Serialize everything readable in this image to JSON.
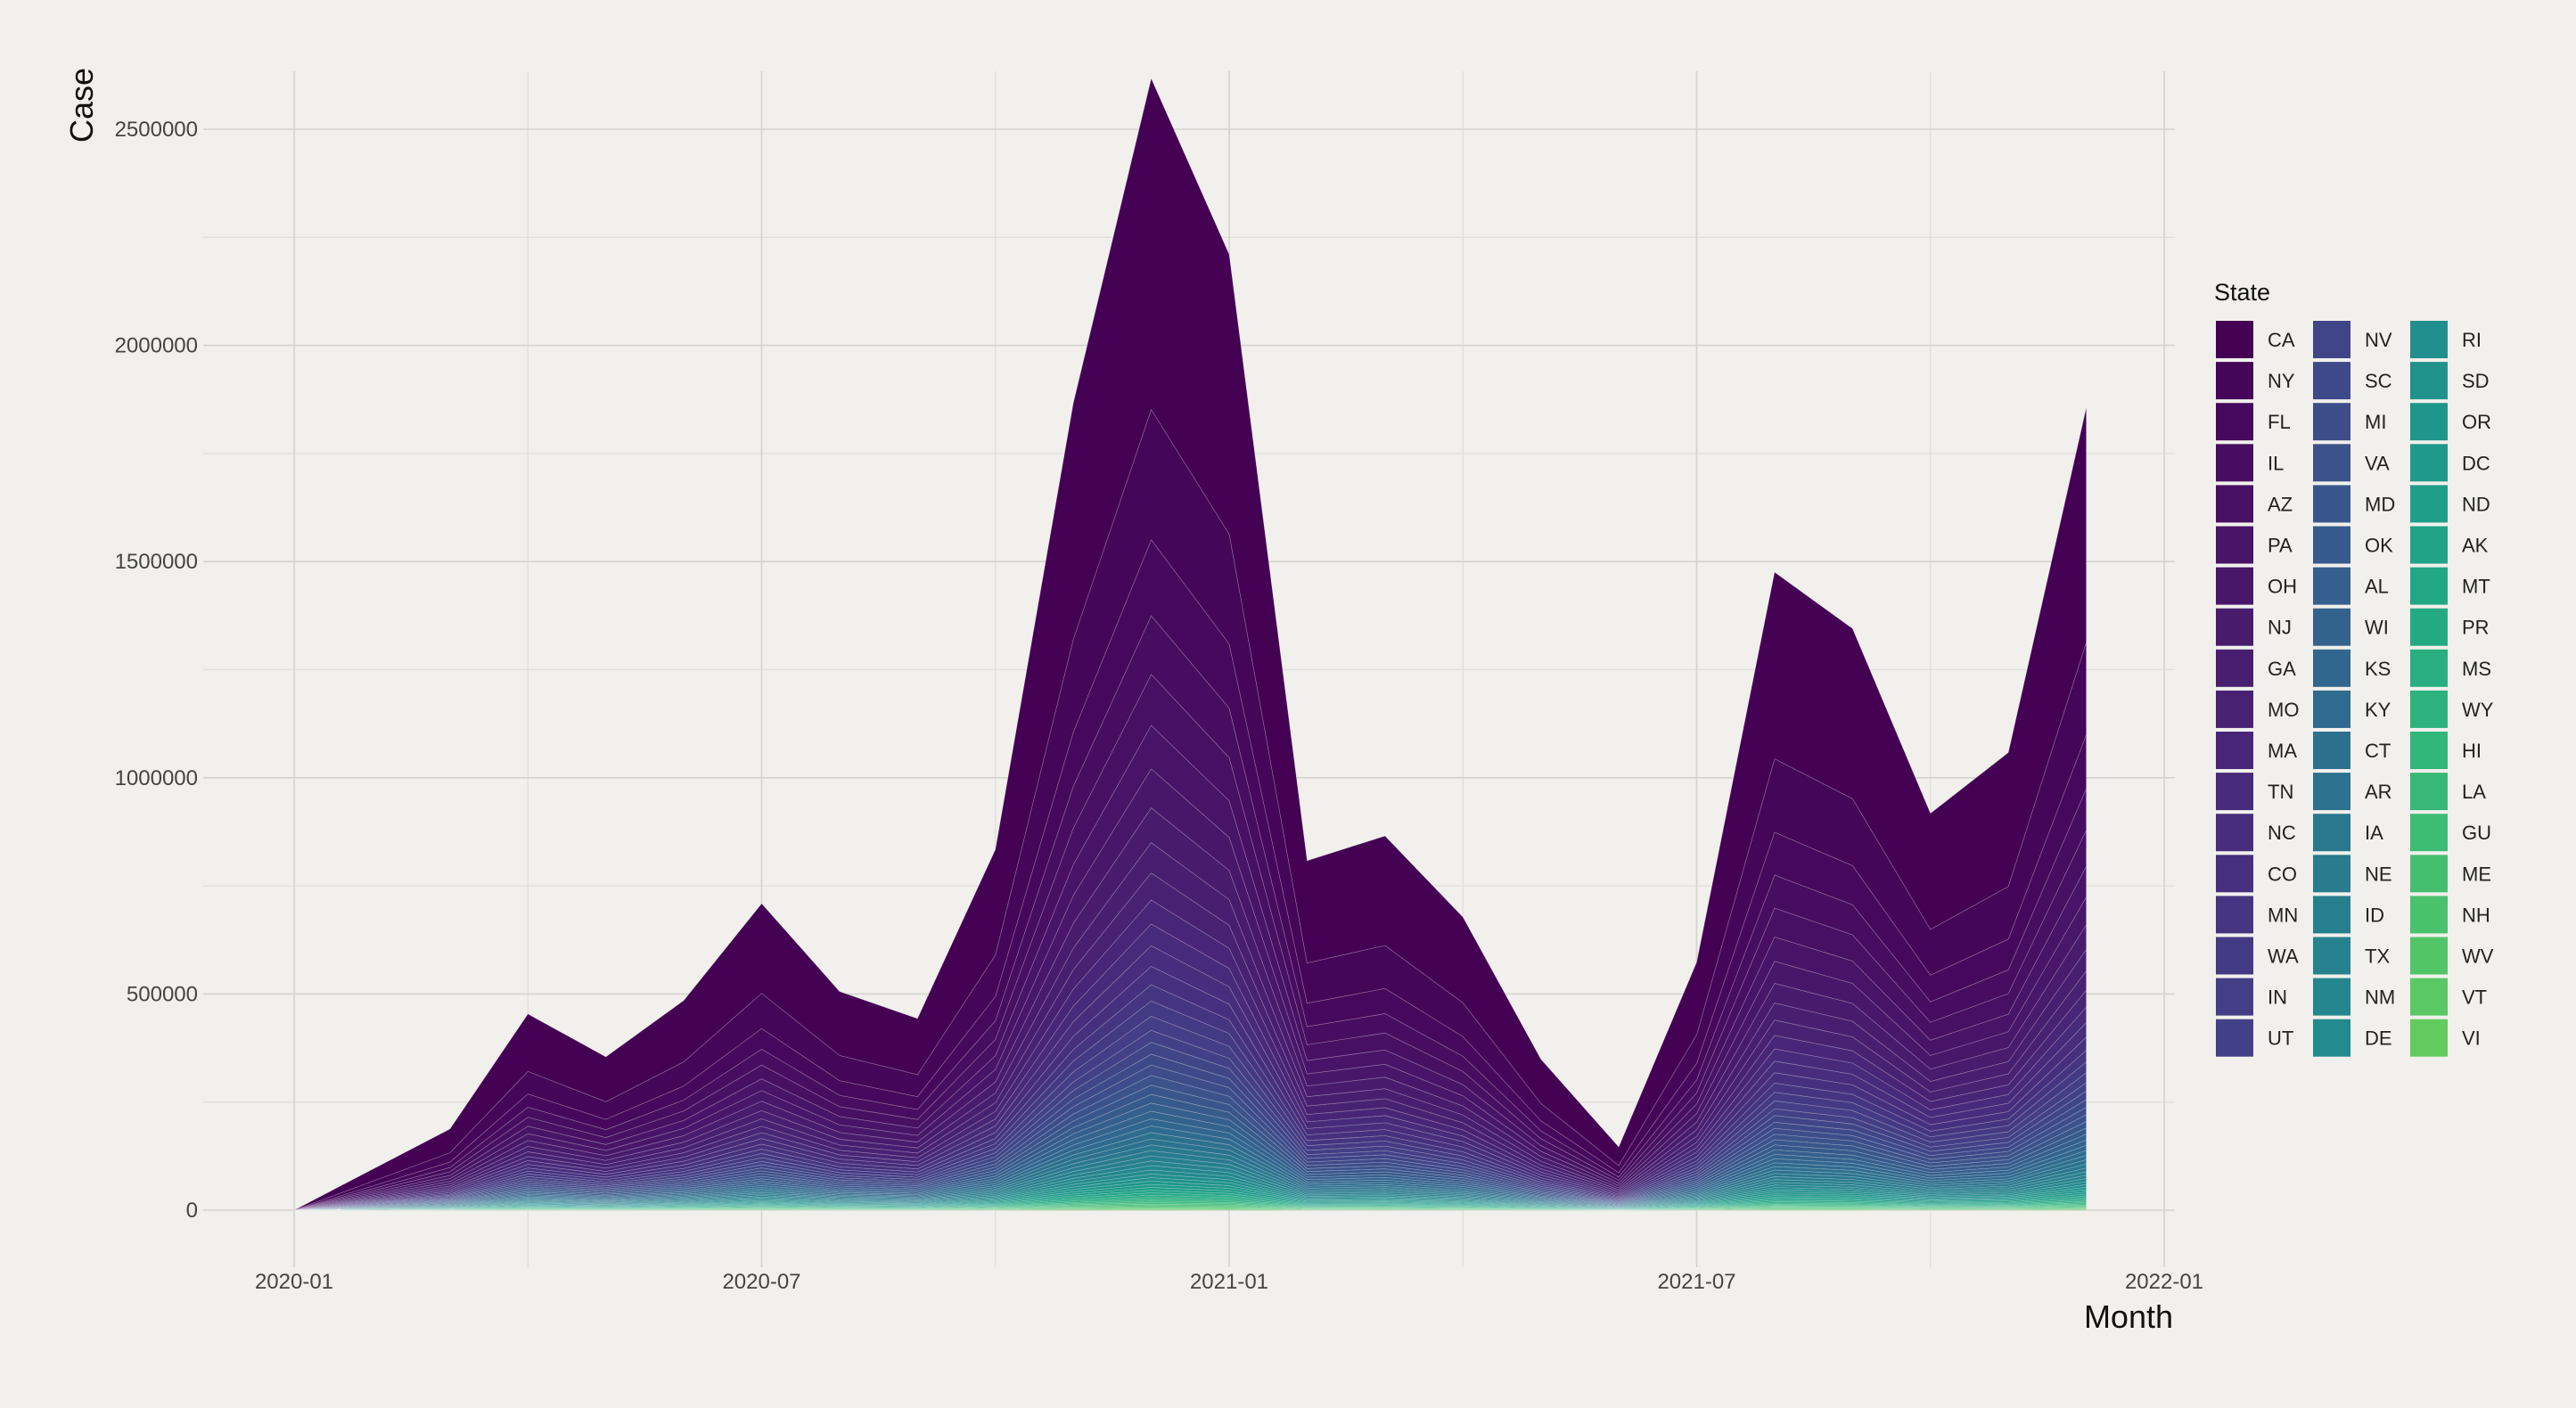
{
  "chart_data": {
    "type": "area",
    "stacked": true,
    "xlabel": "Month",
    "ylabel": "Case",
    "ylim": [
      -100000,
      2650000
    ],
    "y_ticks": [
      0,
      500000,
      1000000,
      1500000,
      2000000,
      2500000
    ],
    "y_tick_labels": [
      "0",
      "500000",
      "1000000",
      "1500000",
      "2000000",
      "2500000"
    ],
    "x_tick_labels": [
      "2020-01",
      "2020-07",
      "2021-01",
      "2021-07",
      "2022-01"
    ],
    "x": [
      "2020-01",
      "2020-03",
      "2020-04",
      "2020-05",
      "2020-06",
      "2020-07",
      "2020-08",
      "2020-09",
      "2020-10",
      "2020-11",
      "2020-12",
      "2021-01",
      "2021-02",
      "2021-03",
      "2021-04",
      "2021-05",
      "2021-06",
      "2021-07",
      "2021-08",
      "2021-09",
      "2021-10",
      "2021-11",
      "2021-12"
    ],
    "total": [
      0,
      180000,
      435000,
      340000,
      465000,
      680000,
      485000,
      425000,
      800000,
      1790000,
      2510000,
      2120000,
      775000,
      830000,
      650000,
      335000,
      140000,
      550000,
      1415000,
      1290000,
      880000,
      1015000,
      1780000
    ],
    "grid": true,
    "legend_title": "State",
    "legend_position": "right",
    "colormap": "viridis",
    "states": [
      "CA",
      "NY",
      "FL",
      "IL",
      "AZ",
      "PA",
      "OH",
      "NJ",
      "GA",
      "MO",
      "MA",
      "TN",
      "NC",
      "CO",
      "MN",
      "WA",
      "IN",
      "UT",
      "NV",
      "SC",
      "MI",
      "VA",
      "MD",
      "OK",
      "AL",
      "WI",
      "KS",
      "KY",
      "CT",
      "AR",
      "IA",
      "NE",
      "ID",
      "TX",
      "NM",
      "DE",
      "RI",
      "SD",
      "OR",
      "DC",
      "ND",
      "AK",
      "MT",
      "PR",
      "MS",
      "WY",
      "HI",
      "LA",
      "GU",
      "ME",
      "NH",
      "WV",
      "VT",
      "VI"
    ],
    "colors": [
      "#440154",
      "#450558",
      "#46085c",
      "#470d60",
      "#471063",
      "#481467",
      "#481769",
      "#481b6d",
      "#481f70",
      "#482173",
      "#482576",
      "#472a7a",
      "#472d7b",
      "#46307e",
      "#453581",
      "#443983",
      "#433e85",
      "#424086",
      "#404588",
      "#3e4989",
      "#3d4d8a",
      "#3b528b",
      "#39568c",
      "#375a8c",
      "#355f8d",
      "#33638d",
      "#31668e",
      "#2f6b8e",
      "#2d708e",
      "#2c728e",
      "#2a778e",
      "#297b8e",
      "#277f8e",
      "#26828e",
      "#24868e",
      "#238a8d",
      "#218f8d",
      "#20928c",
      "#1f968b",
      "#1f9a8a",
      "#1f9e89",
      "#20a386",
      "#22a785",
      "#24aa83",
      "#28ae80",
      "#2db27d",
      "#32b67a",
      "#37b878",
      "#3dbc74",
      "#44bf70",
      "#4ac16d",
      "#52c569",
      "#5ac864",
      "#62cb5f"
    ],
    "shares": [
      0.305,
      0.12,
      0.07,
      0.054,
      0.047,
      0.04,
      0.036,
      0.032,
      0.028,
      0.025,
      0.022,
      0.02,
      0.019,
      0.017,
      0.015,
      0.014,
      0.013,
      0.011,
      0.011,
      0.01,
      0.0095,
      0.009,
      0.0085,
      0.008,
      0.0075,
      0.007,
      0.0066,
      0.0062,
      0.0058,
      0.0055,
      0.0052,
      0.0049,
      0.0046,
      0.0043,
      0.004,
      0.0037,
      0.0034,
      0.0032,
      0.003,
      0.0028,
      0.0026,
      0.0024,
      0.0022,
      0.002,
      0.0018,
      0.0016,
      0.0014,
      0.0013,
      0.0012,
      0.0011,
      0.001,
      0.0009,
      0.0008,
      0.0007
    ]
  }
}
